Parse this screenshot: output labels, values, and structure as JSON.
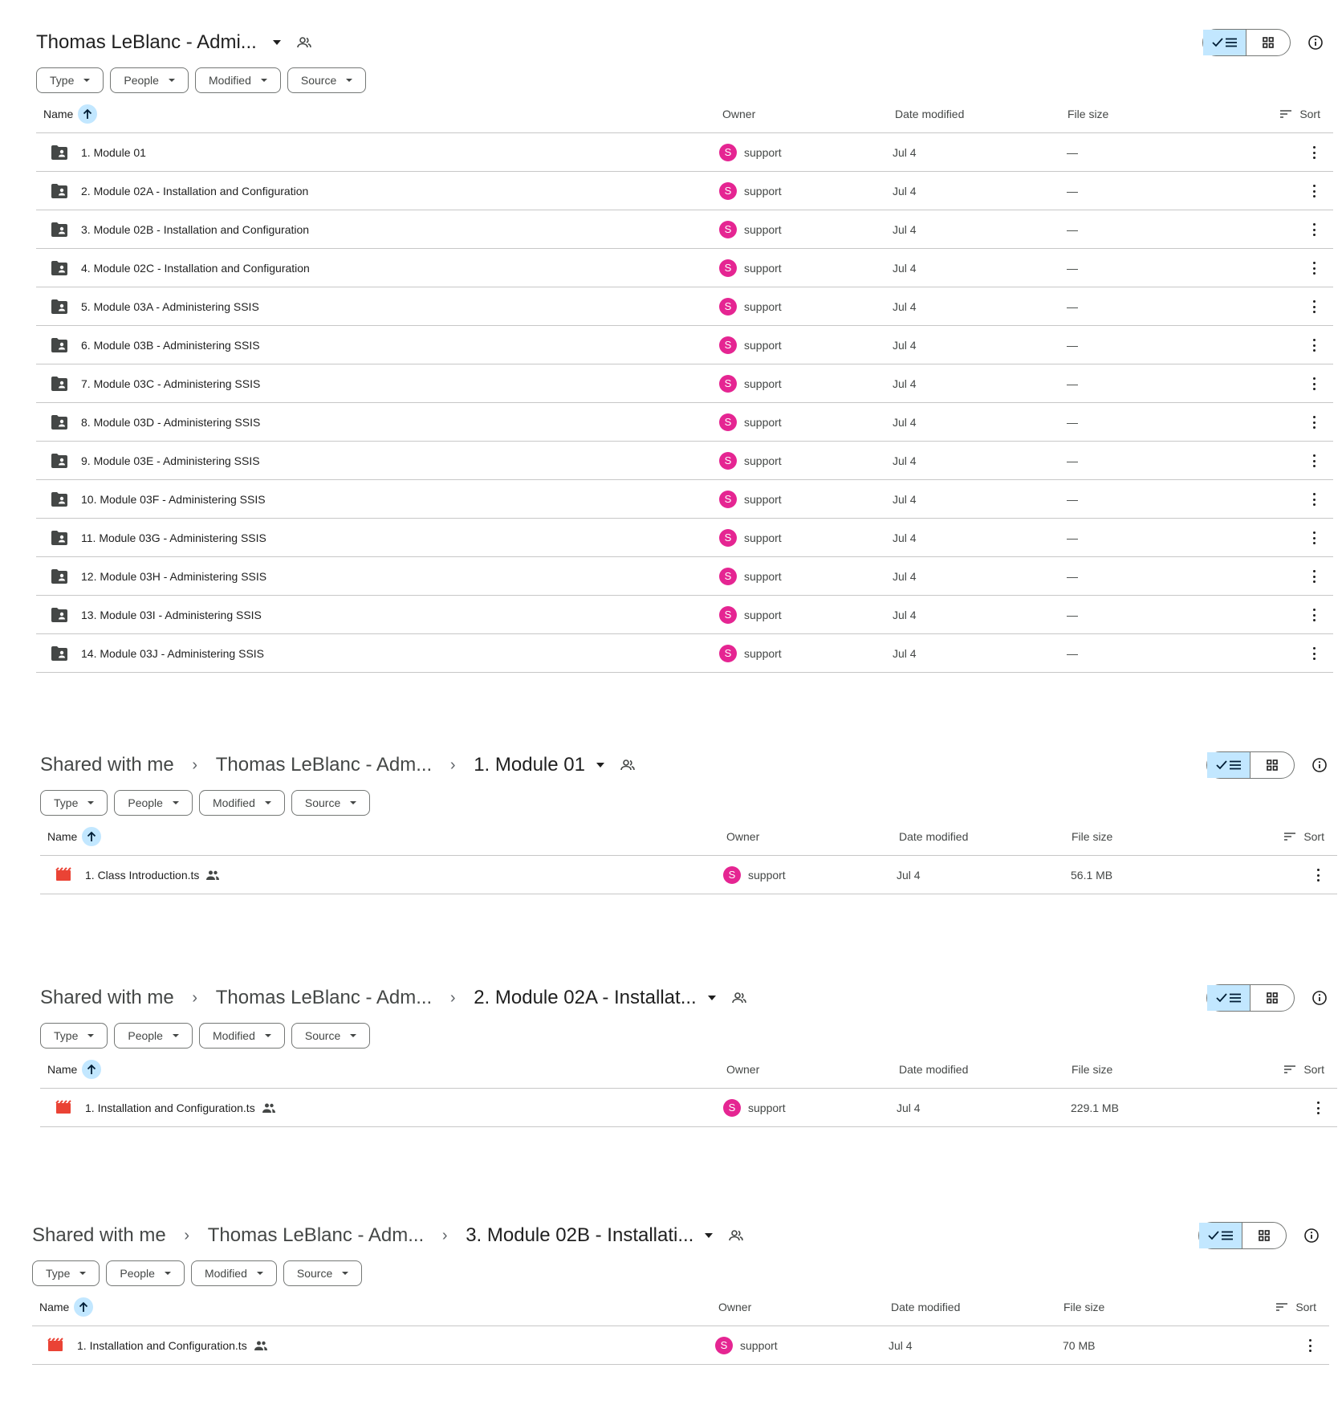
{
  "common": {
    "filters": [
      "Type",
      "People",
      "Modified",
      "Source"
    ],
    "columns": {
      "name": "Name",
      "owner": "Owner",
      "date": "Date modified",
      "size": "File size",
      "sort": "Sort"
    },
    "owner_initial": "S",
    "owner_name": "support",
    "accent": "#c2e7ff",
    "avatar_color": "#e52592",
    "video_icon_color": "#ea4335"
  },
  "panels": [
    {
      "crumbs": [],
      "current": "Thomas LeBlanc - Admi...",
      "rows": [
        {
          "name": "1. Module 01",
          "owner": "support",
          "date": "Jul 4",
          "size": "—"
        },
        {
          "name": "2. Module 02A - Installation and Configuration",
          "owner": "support",
          "date": "Jul 4",
          "size": "—"
        },
        {
          "name": "3. Module 02B - Installation and Configuration",
          "owner": "support",
          "date": "Jul 4",
          "size": "—"
        },
        {
          "name": "4. Module 02C - Installation and Configuration",
          "owner": "support",
          "date": "Jul 4",
          "size": "—"
        },
        {
          "name": "5. Module 03A - Administering SSIS",
          "owner": "support",
          "date": "Jul 4",
          "size": "—"
        },
        {
          "name": "6. Module 03B - Administering SSIS",
          "owner": "support",
          "date": "Jul 4",
          "size": "—"
        },
        {
          "name": "7. Module 03C - Administering SSIS",
          "owner": "support",
          "date": "Jul 4",
          "size": "—"
        },
        {
          "name": "8. Module 03D - Administering SSIS",
          "owner": "support",
          "date": "Jul 4",
          "size": "—"
        },
        {
          "name": "9. Module 03E - Administering SSIS",
          "owner": "support",
          "date": "Jul 4",
          "size": "—"
        },
        {
          "name": "10. Module 03F - Administering SSIS",
          "owner": "support",
          "date": "Jul 4",
          "size": "—"
        },
        {
          "name": "11. Module 03G - Administering SSIS",
          "owner": "support",
          "date": "Jul 4",
          "size": "—"
        },
        {
          "name": "12. Module 03H - Administering SSIS",
          "owner": "support",
          "date": "Jul 4",
          "size": "—"
        },
        {
          "name": "13. Module 03I - Administering SSIS",
          "owner": "support",
          "date": "Jul 4",
          "size": "—"
        },
        {
          "name": "14. Module 03J - Administering SSIS",
          "owner": "support",
          "date": "Jul 4",
          "size": "—"
        }
      ]
    },
    {
      "crumbs": [
        "Shared with me",
        "Thomas LeBlanc - Adm..."
      ],
      "current": "1. Module 01",
      "rows": [
        {
          "name": "1. Class Introduction.ts",
          "owner": "support",
          "date": "Jul 4",
          "size": "56.1 MB"
        }
      ]
    },
    {
      "crumbs": [
        "Shared with me",
        "Thomas LeBlanc - Adm..."
      ],
      "current": "2. Module 02A - Installat...",
      "rows": [
        {
          "name": "1. Installation and Configuration.ts",
          "owner": "support",
          "date": "Jul 4",
          "size": "229.1 MB"
        }
      ]
    },
    {
      "crumbs": [
        "Shared with me",
        "Thomas LeBlanc - Adm..."
      ],
      "current": "3. Module 02B - Installati...",
      "rows": [
        {
          "name": "1. Installation and Configuration.ts",
          "owner": "support",
          "date": "Jul 4",
          "size": "70 MB"
        }
      ]
    }
  ]
}
